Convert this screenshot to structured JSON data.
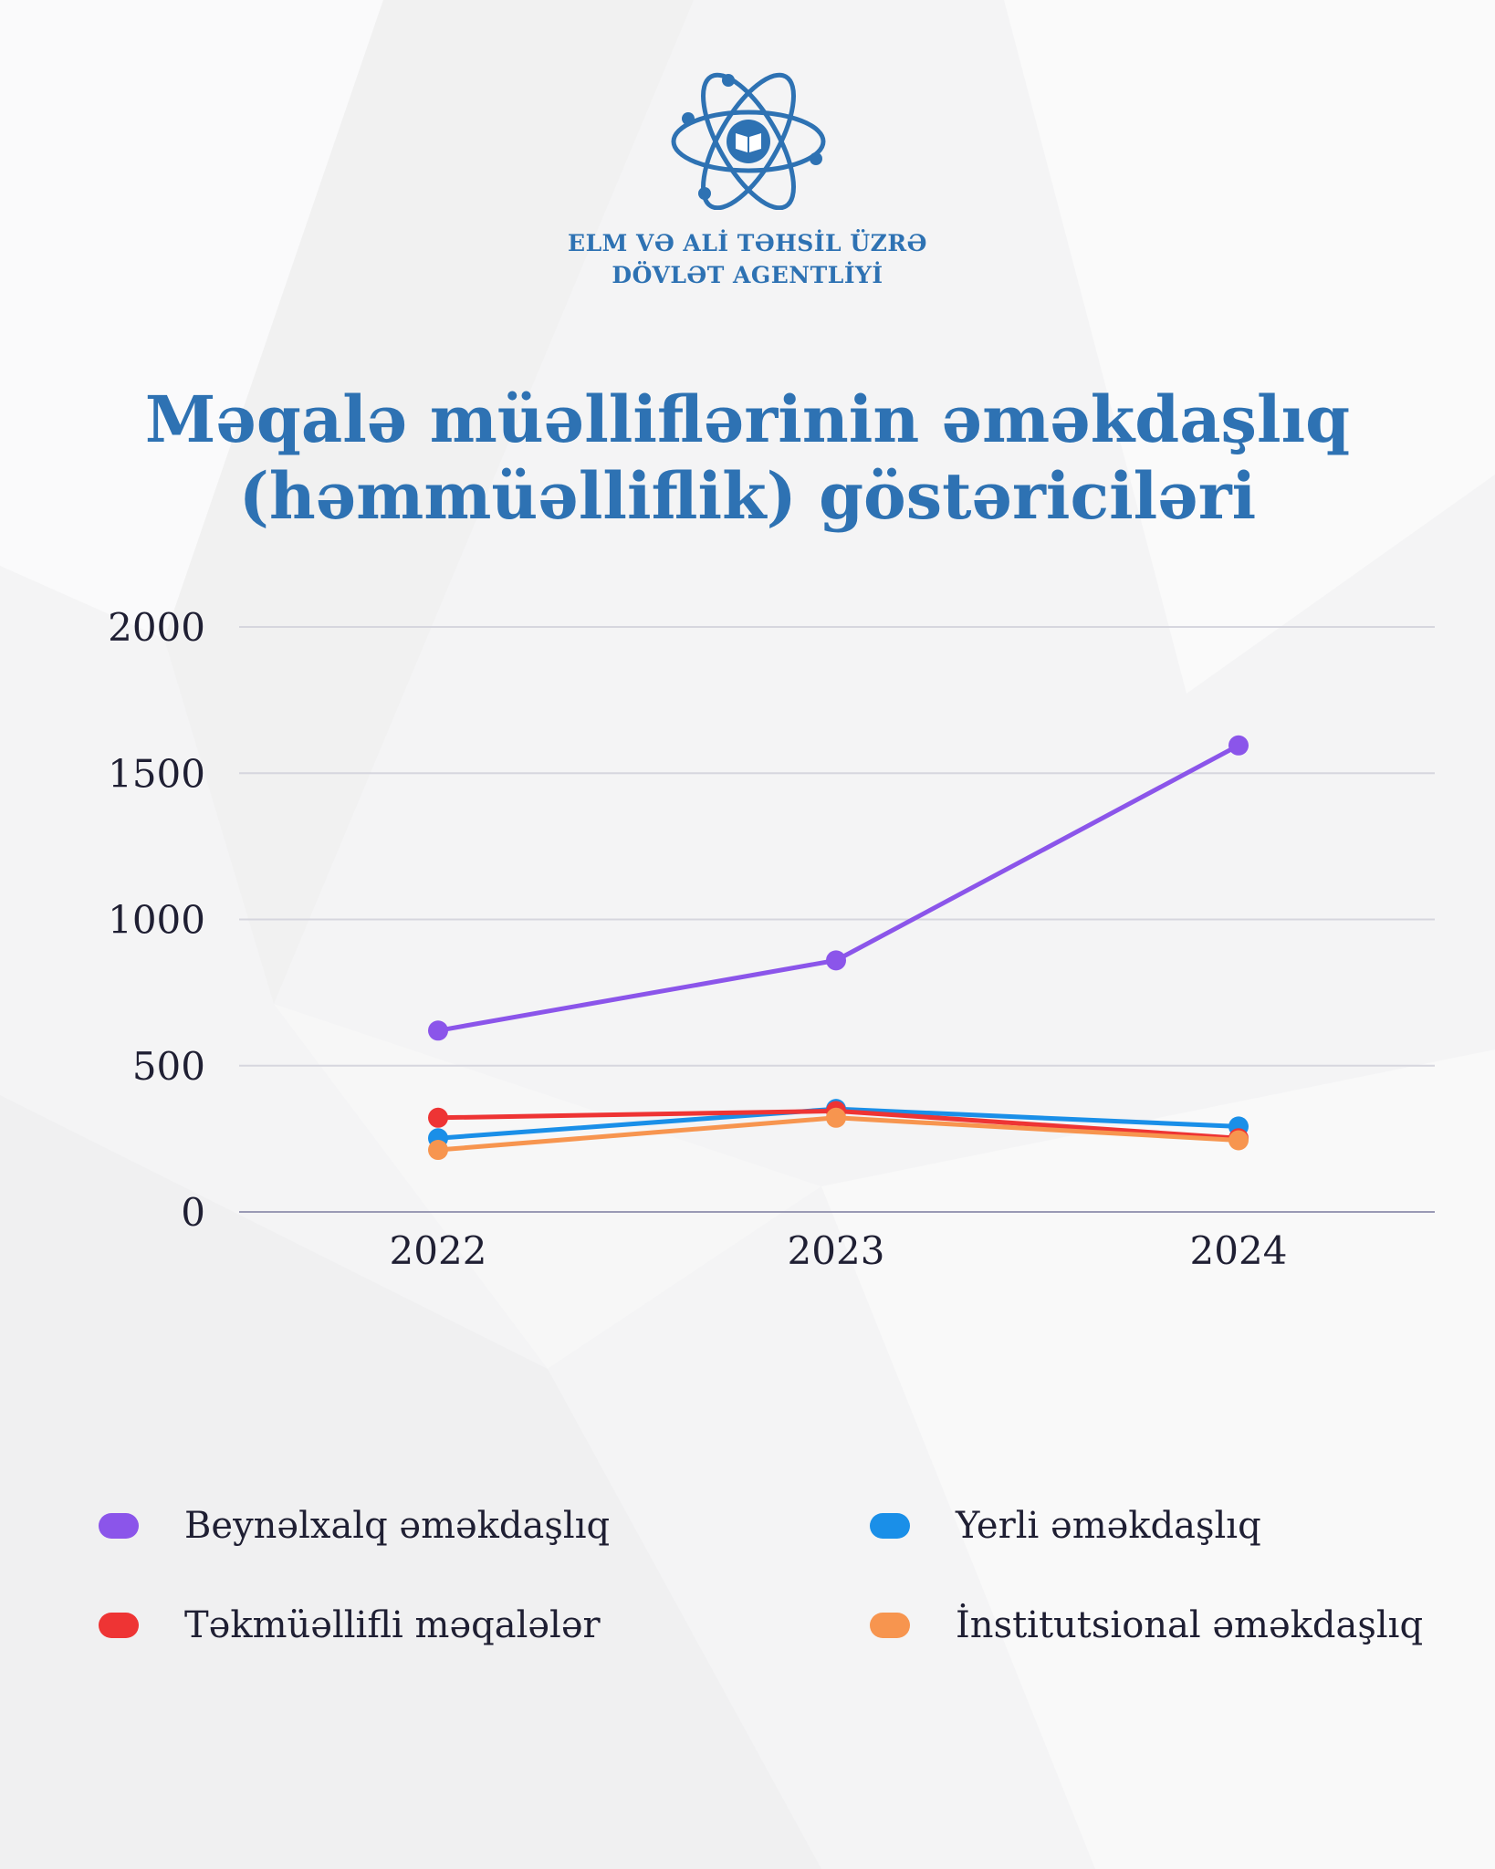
{
  "organization": {
    "line1": "ELM VƏ ALİ TƏHSİL ÜZRƏ",
    "line2": "DÖVLƏT AGENTLİYİ"
  },
  "logo_icon": "atom-book-icon",
  "chart_data": {
    "type": "line",
    "title_line1": "Məqalə müəlliflərinin əməkdaşlıq",
    "title_line2": "(həmmüəlliflik) göstəriciləri",
    "categories": [
      "2022",
      "2023",
      "2024"
    ],
    "yticks": [
      "0",
      "500",
      "1000",
      "1500",
      "2000"
    ],
    "ylim": [
      0,
      2000
    ],
    "grid": true,
    "legend_position": "bottom",
    "series": [
      {
        "name": "Beynəlxalq əməkdaşlıq",
        "color": "#8b55ea",
        "values": [
          620,
          860,
          1595
        ]
      },
      {
        "name": "Yerli əməkdaşlıq",
        "color": "#1a8fe8",
        "values": [
          252,
          352,
          292
        ]
      },
      {
        "name": "Təkmüəllifli məqalələr",
        "color": "#ee3434",
        "values": [
          322,
          345,
          252
        ]
      },
      {
        "name": "İnstitutsional əməkdaşlıq",
        "color": "#f7954f",
        "values": [
          212,
          322,
          245
        ]
      }
    ]
  }
}
